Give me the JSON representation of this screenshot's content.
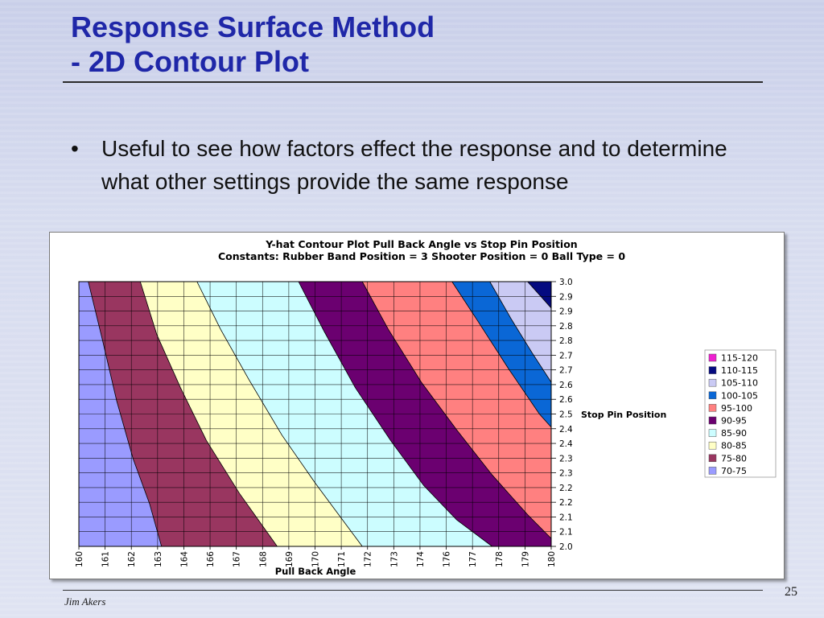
{
  "slide": {
    "title_line1": "Response Surface Method",
    "title_line2": "- 2D Contour Plot",
    "bullet_marker": "•",
    "bullet_text": "Useful to see how factors effect the response and to determine what other settings provide the same response",
    "footer_author": "Jim Akers",
    "page_number": "25"
  },
  "chart_data": {
    "type": "contour",
    "title": "Y-hat Contour Plot Pull Back Angle vs Stop Pin Position",
    "subtitle": "Constants:   Rubber Band Position = 3  Shooter Position = 0  Ball Type = 0",
    "xlabel": "Pull Back Angle",
    "ylabel": "Stop Pin Position",
    "x_ticks": [
      "160",
      "161",
      "162",
      "163",
      "164",
      "166",
      "167",
      "168",
      "169",
      "170",
      "171",
      "172",
      "173",
      "174",
      "176",
      "177",
      "178",
      "179",
      "180"
    ],
    "y_ticks": [
      "3.0",
      "2.9",
      "2.9",
      "2.8",
      "2.8",
      "2.7",
      "2.7",
      "2.6",
      "2.6",
      "2.5",
      "2.4",
      "2.4",
      "2.3",
      "2.3",
      "2.2",
      "2.2",
      "2.1",
      "2.1",
      "2.0"
    ],
    "xlim": [
      160,
      180
    ],
    "ylim": [
      2.0,
      3.0
    ],
    "grid": true,
    "legend_position": "right",
    "levels": [
      {
        "label": "115-120",
        "min": 115,
        "max": 120,
        "color": "#ee1fd0"
      },
      {
        "label": "110-115",
        "min": 110,
        "max": 115,
        "color": "#050a80"
      },
      {
        "label": "105-110",
        "min": 105,
        "max": 110,
        "color": "#cacaf4"
      },
      {
        "label": "100-105",
        "min": 100,
        "max": 105,
        "color": "#0a67d6"
      },
      {
        "label": "95-100",
        "min": 95,
        "max": 100,
        "color": "#ff8080"
      },
      {
        "label": "90-95",
        "min": 90,
        "max": 95,
        "color": "#6b0070"
      },
      {
        "label": "85-90",
        "min": 85,
        "max": 90,
        "color": "#ccfdff"
      },
      {
        "label": "80-85",
        "min": 80,
        "max": 85,
        "color": "#ffffc6"
      },
      {
        "label": "75-80",
        "min": 75,
        "max": 80,
        "color": "#993660"
      },
      {
        "label": "70-75",
        "min": 70,
        "max": 75,
        "color": "#9a9bff"
      }
    ],
    "boundaries": [
      {
        "value": 75,
        "points": [
          [
            160.4,
            3.0
          ],
          [
            161.0,
            2.78
          ],
          [
            161.6,
            2.55
          ],
          [
            162.3,
            2.33
          ],
          [
            163.0,
            2.16
          ],
          [
            163.5,
            2.0
          ]
        ]
      },
      {
        "value": 80,
        "points": [
          [
            162.6,
            3.0
          ],
          [
            163.3,
            2.8
          ],
          [
            164.3,
            2.6
          ],
          [
            165.4,
            2.4
          ],
          [
            166.8,
            2.2
          ],
          [
            168.0,
            2.05
          ],
          [
            168.4,
            2.0
          ]
        ]
      },
      {
        "value": 85,
        "points": [
          [
            165.0,
            3.0
          ],
          [
            166.0,
            2.82
          ],
          [
            167.2,
            2.63
          ],
          [
            168.6,
            2.42
          ],
          [
            170.0,
            2.24
          ],
          [
            171.5,
            2.06
          ],
          [
            172.0,
            2.0
          ]
        ]
      },
      {
        "value": 90,
        "points": [
          [
            169.3,
            3.0
          ],
          [
            170.4,
            2.81
          ],
          [
            171.7,
            2.6
          ],
          [
            173.2,
            2.4
          ],
          [
            174.6,
            2.23
          ],
          [
            176.0,
            2.1
          ],
          [
            177.5,
            2.0
          ]
        ]
      },
      {
        "value": 95,
        "points": [
          [
            172.0,
            3.0
          ],
          [
            173.1,
            2.82
          ],
          [
            174.5,
            2.62
          ],
          [
            176.0,
            2.44
          ],
          [
            177.5,
            2.27
          ],
          [
            179.0,
            2.12
          ],
          [
            180.0,
            2.03
          ]
        ]
      },
      {
        "value": 100,
        "points": [
          [
            175.8,
            3.0
          ],
          [
            176.9,
            2.85
          ],
          [
            178.2,
            2.67
          ],
          [
            179.5,
            2.5
          ],
          [
            180.0,
            2.45
          ]
        ]
      },
      {
        "value": 105,
        "points": [
          [
            177.4,
            3.0
          ],
          [
            178.3,
            2.86
          ],
          [
            179.2,
            2.73
          ],
          [
            180.0,
            2.62
          ]
        ]
      },
      {
        "value": 110,
        "points": [
          [
            179.0,
            3.0
          ],
          [
            179.6,
            2.94
          ],
          [
            180.0,
            2.9
          ]
        ]
      },
      {
        "value": 115,
        "points": []
      }
    ]
  }
}
